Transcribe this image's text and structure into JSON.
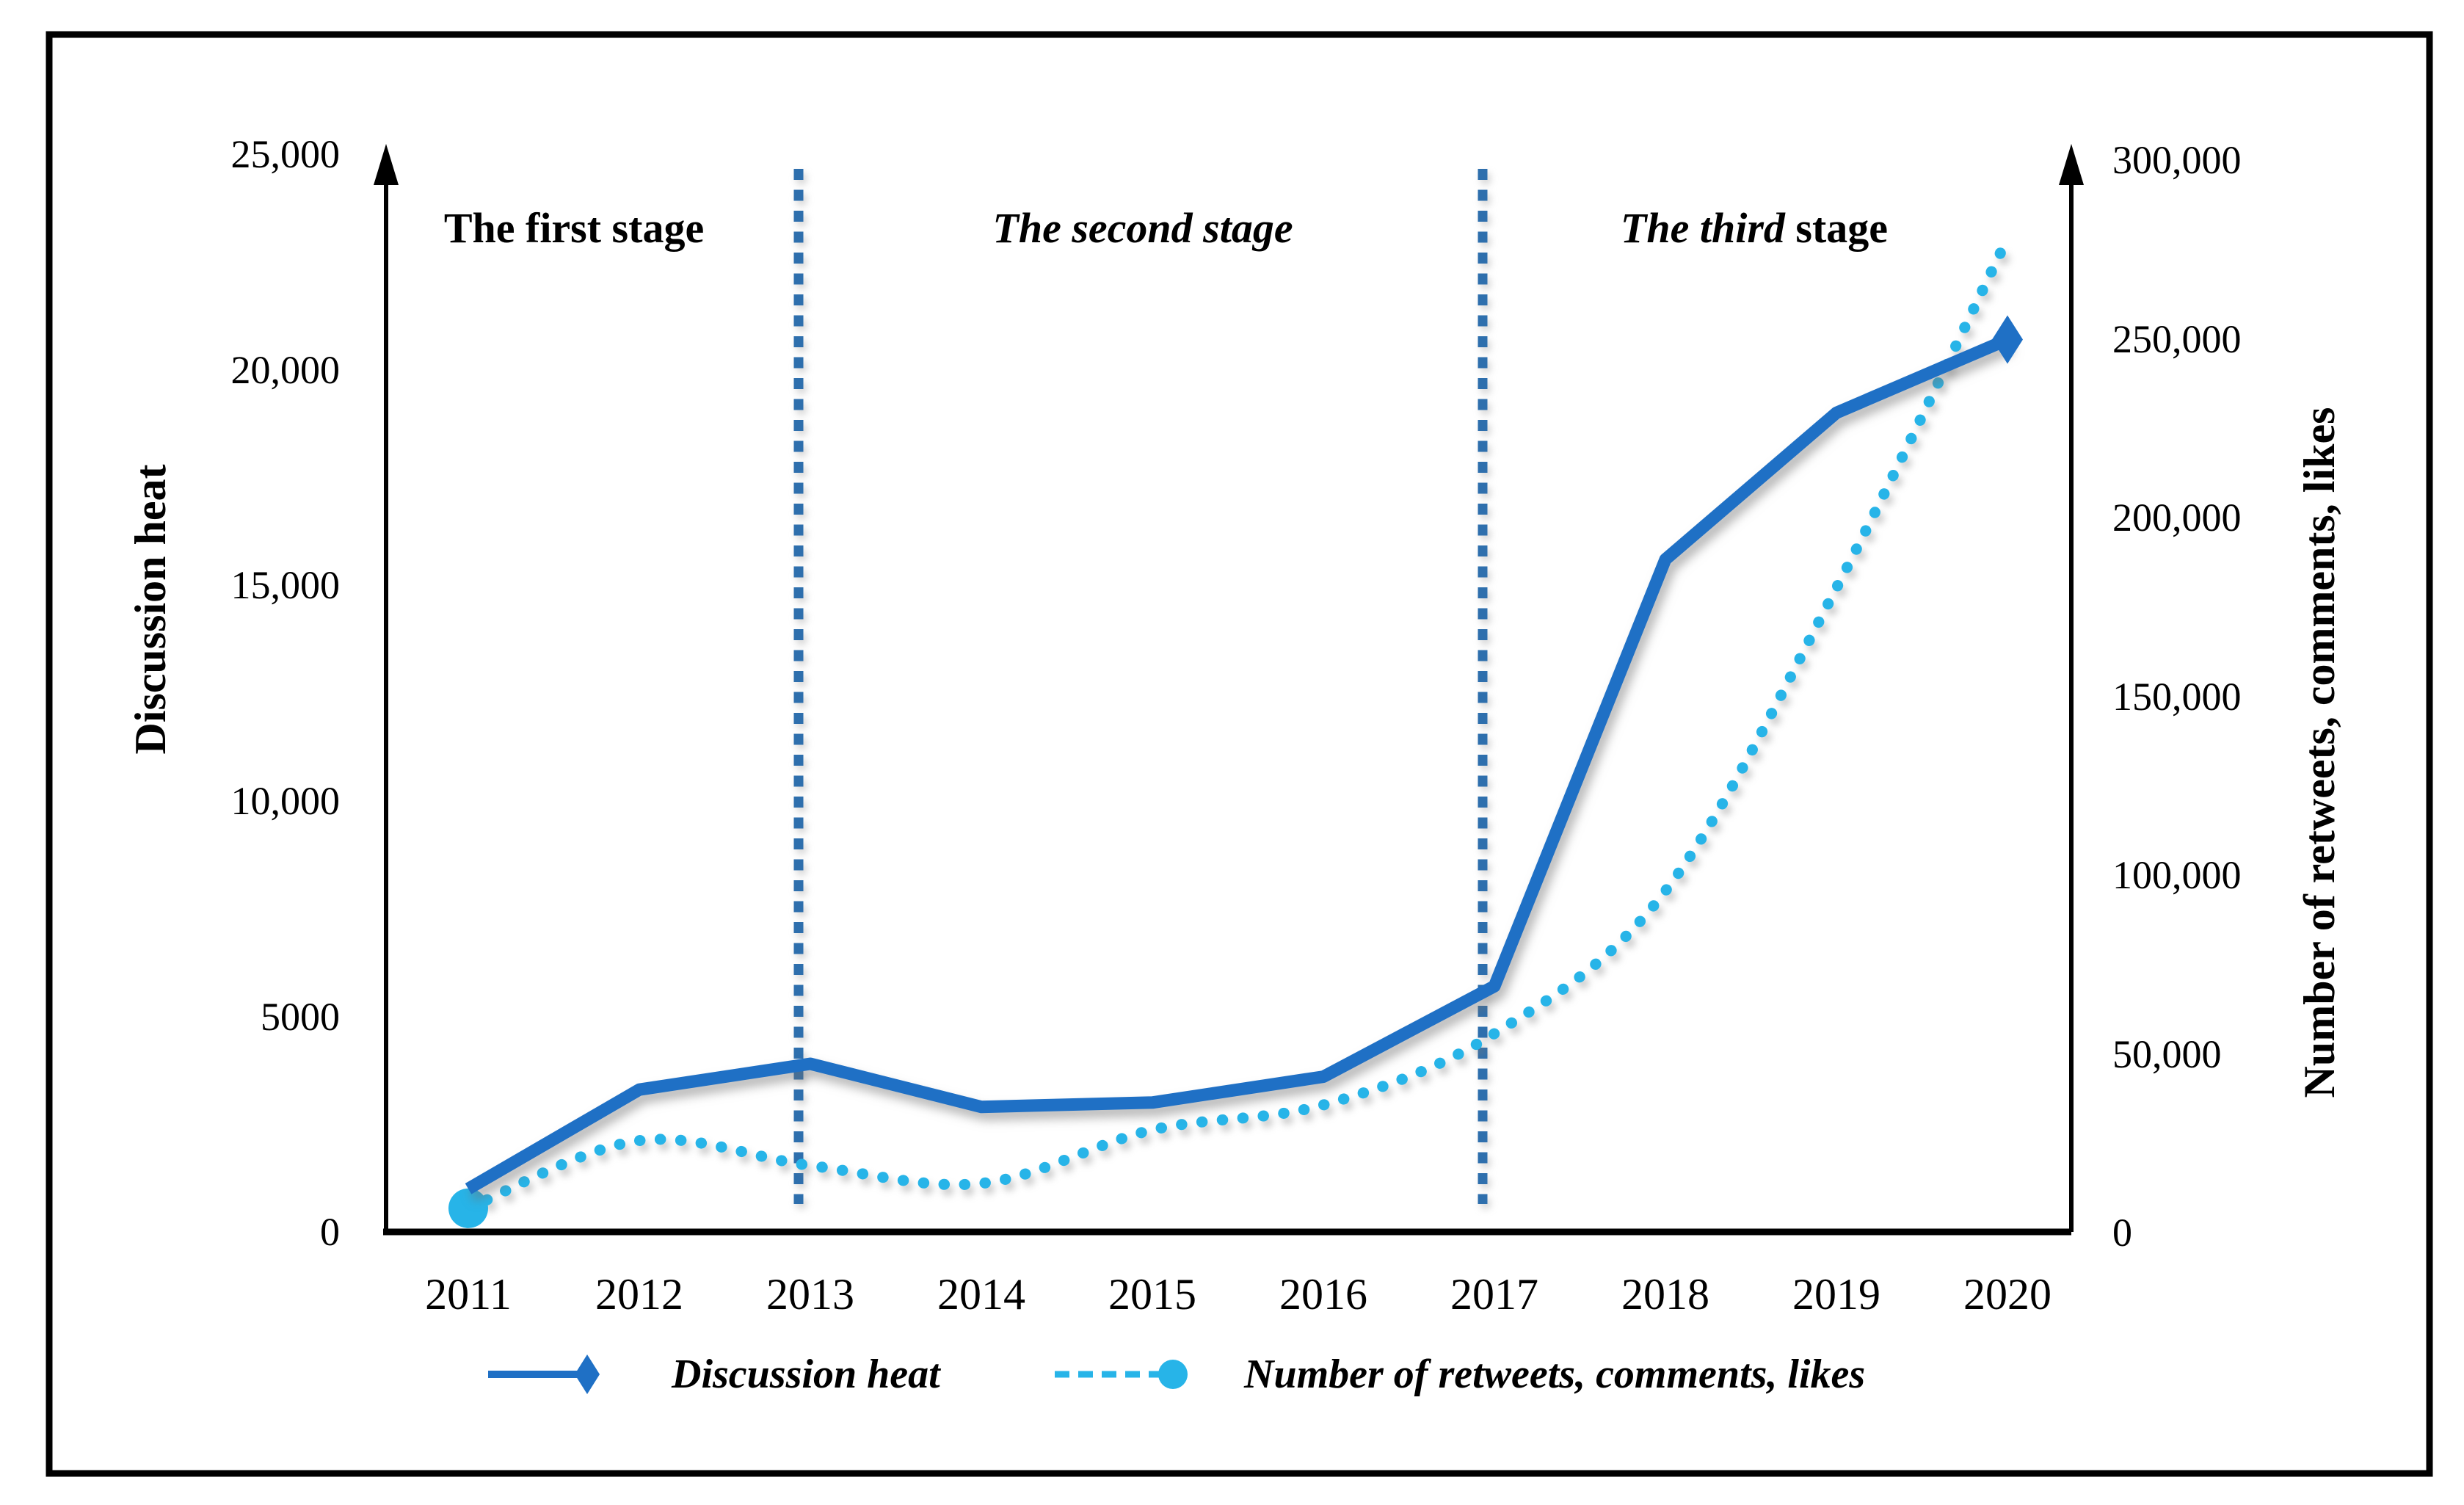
{
  "figure": {
    "background": "#ffffff",
    "border_color": "#000000"
  },
  "chart_data": {
    "type": "line",
    "x": [
      2011,
      2012,
      2013,
      2014,
      2015,
      2016,
      2017,
      2018,
      2019,
      2020
    ],
    "x_labels": [
      "2011",
      "2012",
      "2013",
      "2014",
      "2015",
      "2016",
      "2017",
      "2018",
      "2019",
      "2020"
    ],
    "series": [
      {
        "name": "Discussion heat",
        "axis": "left",
        "type": "line",
        "style": "solid",
        "marker_last": "diamond",
        "color": "#1f70c5",
        "values": [
          1000,
          3300,
          3900,
          2900,
          3000,
          3600,
          5700,
          15600,
          19000,
          20700
        ]
      },
      {
        "name": "Number of retweets, comments, likes",
        "axis": "right",
        "type": "line",
        "style": "dotted",
        "marker_first": "circle",
        "color": "#27b4e8",
        "values": [
          6000,
          25000,
          18000,
          13000,
          28000,
          35000,
          55000,
          95000,
          180000,
          278000
        ]
      }
    ],
    "left_axis": {
      "title": "Discussion heat",
      "range": [
        0,
        25000
      ],
      "ticks": [
        "0",
        "5000",
        "10,000",
        "15,000",
        "20,000",
        "25,000"
      ]
    },
    "right_axis": {
      "title": "Number of retweets, comments, likes",
      "range": [
        0,
        300000
      ],
      "ticks": [
        "0",
        "50,000",
        "100,000",
        "150,000",
        "200,000",
        "250,000",
        "300,000"
      ]
    },
    "stages": [
      {
        "italic": "",
        "regular": "The first stage"
      },
      {
        "italic": "The second stage",
        "regular": ""
      },
      {
        "italic": "The third",
        "regular": " stage"
      }
    ],
    "stage_dividers": [
      2013,
      2017
    ],
    "divider_color": "#2e6fad",
    "legend": [
      {
        "label": "Discussion heat"
      },
      {
        "label": "Number of retweets, comments, likes"
      }
    ],
    "grid": false,
    "legend_position": "bottom"
  }
}
